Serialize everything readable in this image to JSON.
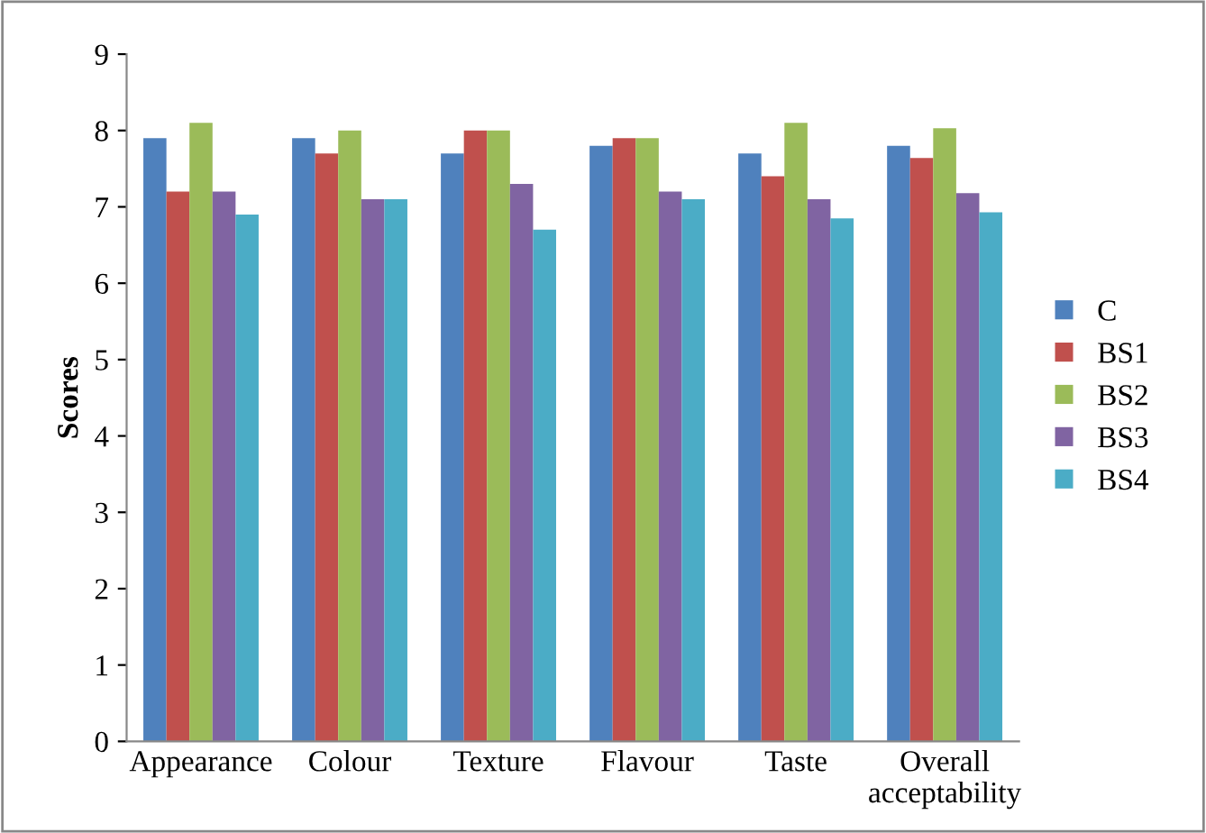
{
  "chart_data": {
    "type": "bar",
    "ylabel": "Scores",
    "categories": [
      "Appearance",
      "Colour",
      "Texture",
      "Flavour",
      "Taste",
      "Overall\nacceptability"
    ],
    "series": [
      {
        "name": "C",
        "color": "#4f81bd",
        "values": [
          7.9,
          7.9,
          7.7,
          7.8,
          7.7,
          7.8
        ]
      },
      {
        "name": "BS1",
        "color": "#c0504d",
        "values": [
          7.2,
          7.7,
          8.0,
          7.9,
          7.4,
          7.64
        ]
      },
      {
        "name": "BS2",
        "color": "#9bbb59",
        "values": [
          8.1,
          8.0,
          8.0,
          7.9,
          8.1,
          8.03
        ]
      },
      {
        "name": "BS3",
        "color": "#8064a2",
        "values": [
          7.2,
          7.1,
          7.3,
          7.2,
          7.1,
          7.18
        ]
      },
      {
        "name": "BS4",
        "color": "#4bacc6",
        "values": [
          6.9,
          7.1,
          6.7,
          7.1,
          6.85,
          6.93
        ]
      }
    ],
    "ylim": [
      0,
      9
    ],
    "yticks": [
      0,
      1,
      2,
      3,
      4,
      5,
      6,
      7,
      8,
      9
    ],
    "grid": false,
    "legend": "right"
  }
}
